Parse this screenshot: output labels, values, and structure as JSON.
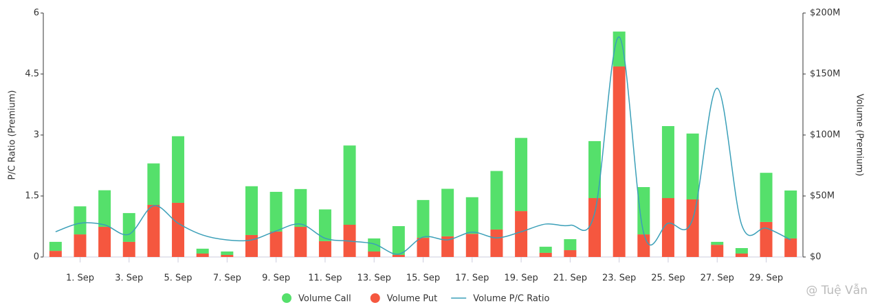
{
  "chart_data": {
    "type": "bar",
    "categories": [
      null,
      "1. Sep",
      null,
      "3. Sep",
      null,
      "5. Sep",
      null,
      "7. Sep",
      null,
      "9. Sep",
      null,
      "11. Sep",
      null,
      "13. Sep",
      null,
      "15. Sep",
      null,
      "17. Sep",
      null,
      "19. Sep",
      null,
      "21. Sep",
      null,
      "23. Sep",
      null,
      "25. Sep",
      null,
      "27. Sep",
      null,
      "29. Sep",
      null
    ],
    "ylabel": "P/C Ratio (Premium)",
    "y2label": "Volume (Premium)",
    "ylim": [
      0,
      6
    ],
    "yticks": [
      0,
      1.5,
      3,
      4.5,
      6
    ],
    "y2lim": [
      0,
      200
    ],
    "y2ticks": [
      {
        "value": 0,
        "label": "$0"
      },
      {
        "value": 50,
        "label": "$50M"
      },
      {
        "value": 100,
        "label": "$100M"
      },
      {
        "value": 150,
        "label": "$150M"
      },
      {
        "value": 200,
        "label": "$200M"
      }
    ],
    "stacked": true,
    "legend": "bottom",
    "series": [
      {
        "name": "Volume Put",
        "color": "#f5573f",
        "axis": "y2",
        "type": "bar",
        "values": [
          5,
          18.5,
          24.7,
          12.4,
          42.7,
          44.4,
          2.8,
          1.7,
          18,
          20.8,
          24.7,
          13,
          26.4,
          4.5,
          1.7,
          15.7,
          16.9,
          19,
          22.5,
          37.6,
          3.4,
          5.6,
          48.3,
          156.2,
          18.5,
          48.3,
          47.2,
          10,
          2.8,
          28.7,
          15.2
        ]
      },
      {
        "name": "Volume Call",
        "color": "#55e06b",
        "axis": "y2",
        "type": "bar",
        "values": [
          7.4,
          23,
          30,
          23.6,
          34,
          54.6,
          4,
          2.8,
          40,
          32.6,
          31,
          26,
          65,
          10.7,
          23.6,
          31,
          39,
          30,
          48,
          60,
          5,
          9,
          46.7,
          28.6,
          38.8,
          59,
          54,
          2.4,
          4.5,
          40.3,
          39.3
        ]
      },
      {
        "name": "Volume P/C Ratio",
        "color": "#3a9fb8",
        "type": "line",
        "values": [
          0.62,
          0.83,
          0.79,
          0.56,
          1.26,
          0.83,
          0.54,
          0.42,
          0.42,
          0.64,
          0.81,
          0.46,
          0.39,
          0.32,
          0.07,
          0.49,
          0.42,
          0.61,
          0.47,
          0.62,
          0.81,
          0.78,
          1.08,
          5.41,
          0.59,
          0.83,
          0.93,
          4.15,
          0.79,
          0.71,
          0.42
        ]
      }
    ],
    "watermark": "@ Tuệ Vẫn"
  }
}
